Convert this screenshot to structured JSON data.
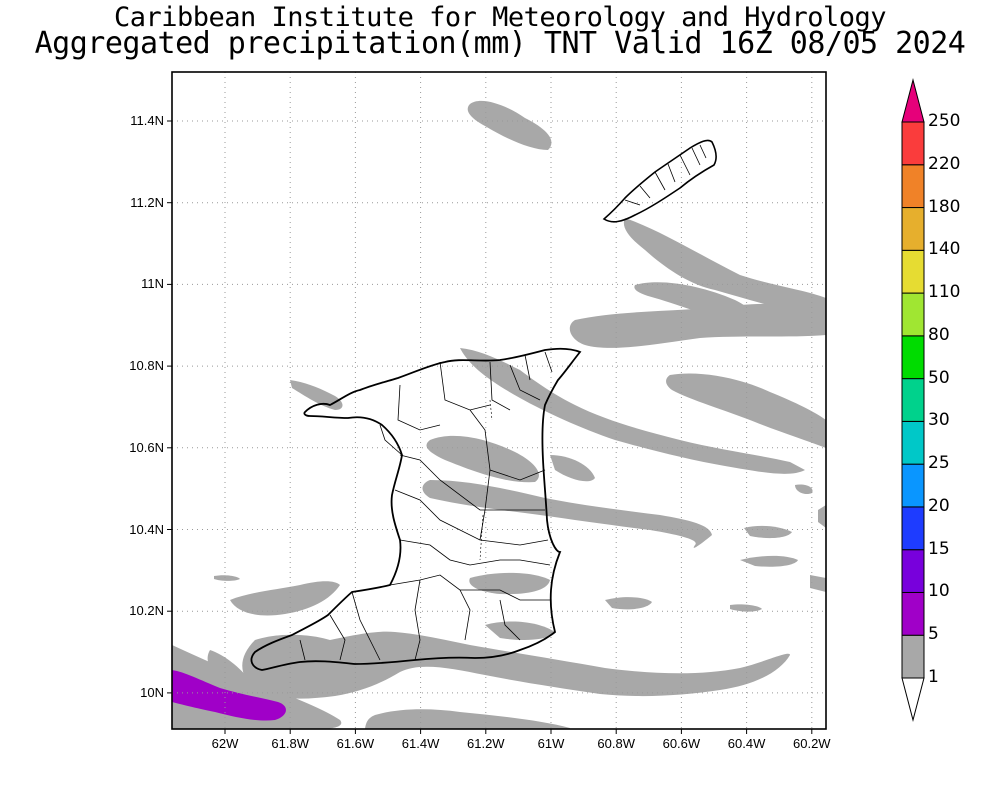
{
  "header": {
    "line1": "Caribbean Institute for Meteorology and Hydrology",
    "line2": "Aggregated precipitation(mm) TNT Valid 16Z 08/05 2024"
  },
  "axes": {
    "lat_labels": [
      "11.4N",
      "11.2N",
      "11N",
      "10.8N",
      "10.6N",
      "10.4N",
      "10.2N",
      "10N"
    ],
    "lon_labels": [
      "62W",
      "61.8W",
      "61.6W",
      "61.4W",
      "61.2W",
      "61W",
      "60.8W",
      "60.6W",
      "60.4W",
      "60.2W"
    ],
    "lat_range": [
      9.9,
      11.5
    ],
    "lon_range": [
      -62.17,
      -60.17
    ],
    "grid": true
  },
  "colorbar": {
    "labels": [
      "1",
      "5",
      "10",
      "15",
      "20",
      "25",
      "30",
      "50",
      "80",
      "110",
      "140",
      "180",
      "220",
      "250"
    ],
    "colors": [
      "#ffffff",
      "#a8a8a8",
      "#a000c8",
      "#7800dc",
      "#1e3cff",
      "#0a96ff",
      "#00c8c8",
      "#00d28c",
      "#00dc00",
      "#a0e632",
      "#e6dc32",
      "#e6af2d",
      "#f08228",
      "#fa3c3c",
      "#e6007a"
    ]
  },
  "legend_colors": {
    "light_precip": "#a8a8a8",
    "moderate_precip": "#a000c8"
  }
}
